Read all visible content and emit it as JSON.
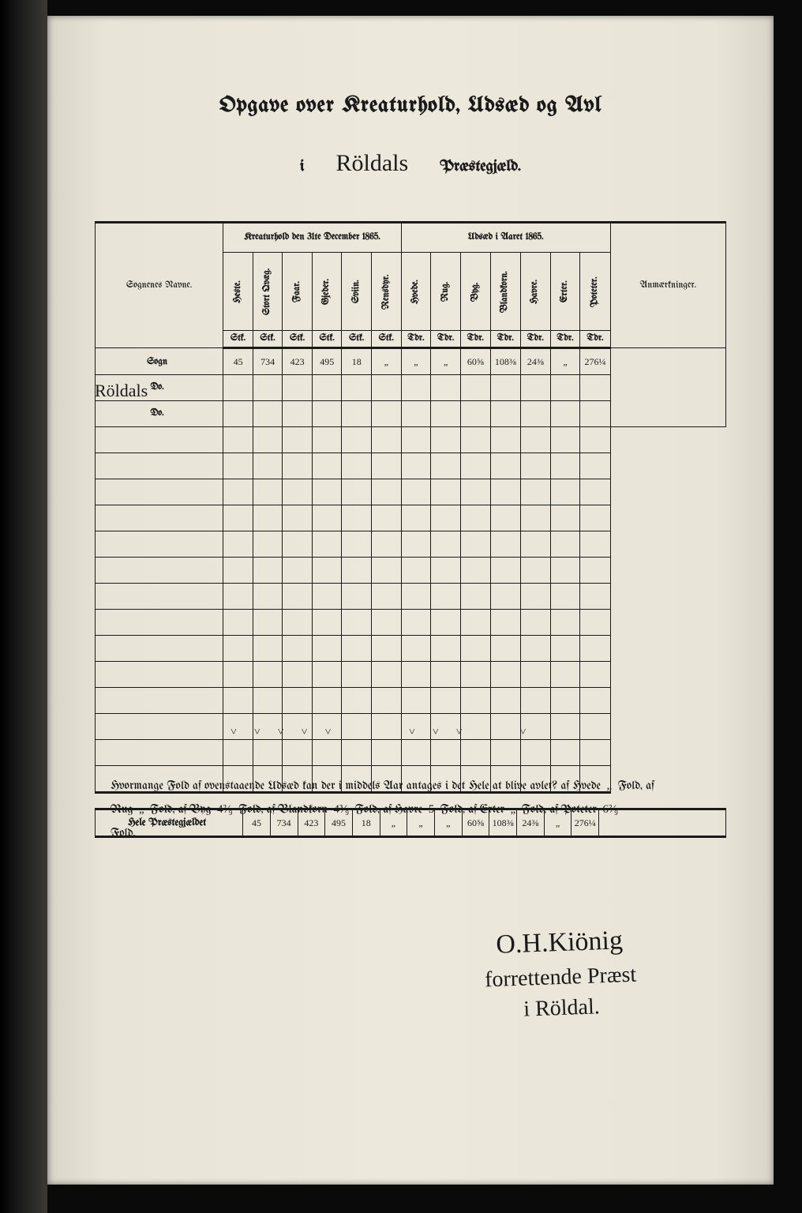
{
  "header": {
    "title": "Opgave over Kreaturhold, Udsæd og Avl",
    "i": "i",
    "parish_script": "Röldals",
    "praestegjeld": "Præstegjæld."
  },
  "table": {
    "sognenes_navne": "Sognenes Navne.",
    "anm": "Anmærkninger.",
    "group1": "Kreaturhold den 31te December 1865.",
    "group2": "Udsæd i Aaret 1865.",
    "cols_livestock": [
      "Heste.",
      "Stort Qvæg.",
      "Faar.",
      "Gjeder.",
      "Sviin.",
      "Rensdyr."
    ],
    "cols_seed": [
      "Hvede.",
      "Rug.",
      "Byg.",
      "Blandkorn.",
      "Havre.",
      "Erter.",
      "Poteter."
    ],
    "unit_stk": "Stk.",
    "unit_tdr": "Tdr.",
    "row1_label_script": "Röldals",
    "row1_label_suffix": "Sogn",
    "row2_label": "Do.",
    "row3_label": "Do.",
    "row1_vals": [
      "45",
      "734",
      "423",
      "495",
      "18",
      "„",
      "„",
      "„",
      "60⅝",
      "108⅜",
      "24⅜",
      "„",
      "276¼"
    ],
    "total_label": "Hele Præstegjældet",
    "total_vals": [
      "45",
      "734",
      "423",
      "495",
      "18",
      "„",
      "„",
      "„",
      "60⅝",
      "108⅜",
      "24⅜",
      "„",
      "276¼"
    ],
    "empty_rows": 14
  },
  "footer": {
    "line1a": "Hvormange Fold af ovenstaaende Udsæd kan der i middels Aar antages i det Hele at blive avlet? af Hvede",
    "q": "„",
    "fold": "Fold, af",
    "rug": "Rug",
    "byg": "Byg",
    "blandkorn": "Blandkorn",
    "havre": "Havre",
    "erter": "Erter",
    "poteter": "Poteter",
    "fold_end": "Fold.",
    "v_byg": "4²⁄₉",
    "v_bland": "4³⁄₉",
    "v_havre": "5",
    "v_poteter": "6²⁄₉"
  },
  "signature": {
    "name": "O.H.Kiönig",
    "line2": "forrettende Præst",
    "line3": "i Röldal."
  },
  "colors": {
    "ink": "#1a1a1a",
    "paper": "#e8e4d8",
    "paper_edge": "#d8d4c8",
    "bg": "#0a0a0a"
  }
}
